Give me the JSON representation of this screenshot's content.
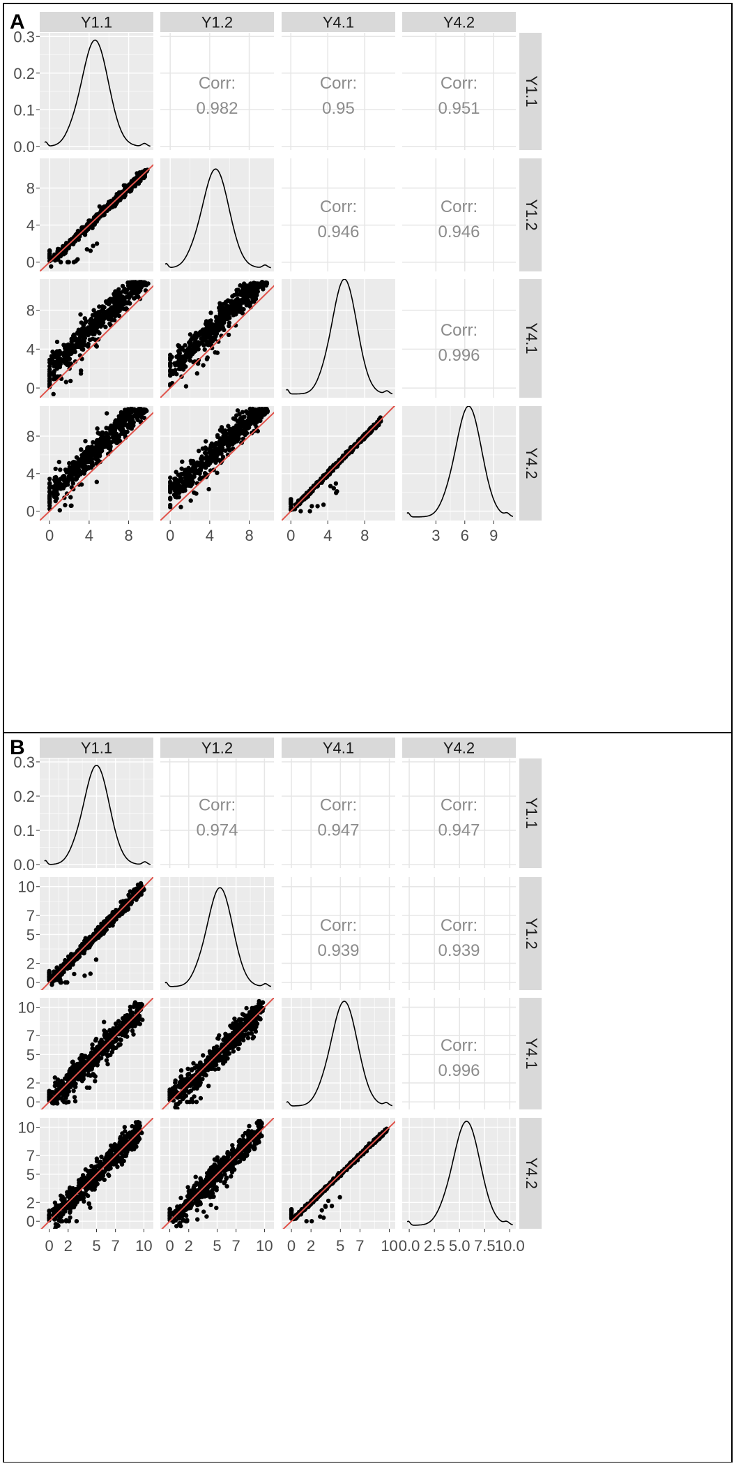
{
  "figure_labels": [
    "A",
    "B"
  ],
  "colors": {
    "panel_bg": "#ebebeb",
    "grid": "#ffffff",
    "strip": "#d9d9d9",
    "tick_text": "#4d4d4d",
    "corr_text": "#8c8c8c",
    "identity_line": "#e0524a",
    "points": "#000000",
    "border": "#000000"
  },
  "chart_data": [
    {
      "type": "scatter",
      "panel_label": "A",
      "title": "",
      "variables": [
        "Y1.1",
        "Y1.2",
        "Y4.1",
        "Y4.2"
      ],
      "diagonal": "density",
      "upper": "correlation",
      "lower": "scatter with identity line y = x",
      "corr_label": "Corr:",
      "correlations": [
        {
          "row": "Y1.1",
          "col": "Y1.2",
          "value": "0.982"
        },
        {
          "row": "Y1.1",
          "col": "Y4.1",
          "value": "0.95"
        },
        {
          "row": "Y1.1",
          "col": "Y4.2",
          "value": "0.951"
        },
        {
          "row": "Y1.2",
          "col": "Y4.1",
          "value": "0.946"
        },
        {
          "row": "Y1.2",
          "col": "Y4.2",
          "value": "0.946"
        },
        {
          "row": "Y4.1",
          "col": "Y4.2",
          "value": "0.996"
        }
      ],
      "x_axes": {
        "Y1.1": {
          "range": [
            -1,
            10.5
          ],
          "ticks": [
            0,
            4,
            8
          ],
          "tick_labels": [
            "0",
            "4",
            "8"
          ]
        },
        "Y1.2": {
          "range": [
            -1,
            10.5
          ],
          "ticks": [
            0,
            4,
            8
          ],
          "tick_labels": [
            "0",
            "4",
            "8"
          ]
        },
        "Y4.1": {
          "range": [
            -1,
            11.3
          ],
          "ticks": [
            0,
            4,
            8
          ],
          "tick_labels": [
            "0",
            "4",
            "8"
          ]
        },
        "Y4.2": {
          "range": [
            -0.5,
            11.3
          ],
          "ticks": [
            3,
            6,
            9
          ],
          "tick_labels": [
            "3",
            "6",
            "9"
          ]
        }
      },
      "y_axes": {
        "Y1.1": {
          "range": [
            -0.01,
            0.31
          ],
          "ticks": [
            0,
            0.1,
            0.2,
            0.3
          ],
          "tick_labels": [
            "0.0",
            "0.1",
            "0.2",
            "0.3"
          ]
        },
        "Y1.2": {
          "range": [
            -1,
            11.2
          ],
          "ticks": [
            0,
            4,
            8
          ],
          "tick_labels": [
            "0",
            "4",
            "8"
          ]
        },
        "Y4.1": {
          "range": [
            -1,
            11.2
          ],
          "ticks": [
            0,
            4,
            8
          ],
          "tick_labels": [
            "0",
            "4",
            "8"
          ]
        },
        "Y4.2": {
          "range": [
            -1,
            11.2
          ],
          "ticks": [
            0,
            4,
            8
          ],
          "tick_labels": [
            "0",
            "4",
            "8"
          ]
        }
      },
      "densities": [
        {
          "variable": "Y1.1",
          "peak_x": 4.6,
          "peak_density": 0.29
        },
        {
          "variable": "Y1.2",
          "peak_x": 4.6,
          "peak_density": 0.28
        },
        {
          "variable": "Y4.1",
          "peak_x": 5.8,
          "peak_density": 0.31
        },
        {
          "variable": "Y4.2",
          "peak_x": 6.4,
          "peak_density": 0.31
        }
      ],
      "scatter_trends": [
        {
          "x": "Y1.1",
          "y": "Y1.2",
          "slope": 1.0,
          "intercept": 0.0,
          "spread": 0.25
        },
        {
          "x": "Y1.1",
          "y": "Y4.1",
          "slope": 1.0,
          "intercept": 1.8,
          "spread": 0.75
        },
        {
          "x": "Y1.2",
          "y": "Y4.1",
          "slope": 1.0,
          "intercept": 1.8,
          "spread": 0.75
        },
        {
          "x": "Y1.1",
          "y": "Y4.2",
          "slope": 1.0,
          "intercept": 1.8,
          "spread": 0.75
        },
        {
          "x": "Y1.2",
          "y": "Y4.2",
          "slope": 1.0,
          "intercept": 1.8,
          "spread": 0.75
        },
        {
          "x": "Y4.1",
          "y": "Y4.2",
          "slope": 1.0,
          "intercept": 0.0,
          "spread": 0.12
        }
      ]
    },
    {
      "type": "scatter",
      "panel_label": "B",
      "title": "",
      "variables": [
        "Y1.1",
        "Y1.2",
        "Y4.1",
        "Y4.2"
      ],
      "diagonal": "density",
      "upper": "correlation",
      "lower": "scatter with identity line y = x",
      "corr_label": "Corr:",
      "correlations": [
        {
          "row": "Y1.1",
          "col": "Y1.2",
          "value": "0.974"
        },
        {
          "row": "Y1.1",
          "col": "Y4.1",
          "value": "0.947"
        },
        {
          "row": "Y1.1",
          "col": "Y4.2",
          "value": "0.947"
        },
        {
          "row": "Y1.2",
          "col": "Y4.1",
          "value": "0.939"
        },
        {
          "row": "Y1.2",
          "col": "Y4.2",
          "value": "0.939"
        },
        {
          "row": "Y4.1",
          "col": "Y4.2",
          "value": "0.996"
        }
      ],
      "x_axes": {
        "Y1.1": {
          "range": [
            -1,
            11
          ],
          "ticks": [
            0,
            2,
            5,
            7,
            10
          ],
          "tick_labels": [
            "0",
            "2",
            "5",
            "7",
            "10"
          ]
        },
        "Y1.2": {
          "range": [
            -1,
            11
          ],
          "ticks": [
            0,
            2,
            5,
            7,
            10
          ],
          "tick_labels": [
            "0",
            "2",
            "5",
            "7",
            "10"
          ]
        },
        "Y4.1": {
          "range": [
            -1,
            10.6
          ],
          "ticks": [
            0,
            2,
            5,
            7,
            10
          ],
          "tick_labels": [
            "0",
            "2",
            "5",
            "7",
            "10"
          ]
        },
        "Y4.2": {
          "range": [
            -0.7,
            10.6
          ],
          "ticks": [
            0,
            2.5,
            5,
            7.5,
            10
          ],
          "tick_labels": [
            "0.0",
            "2.5",
            "5.0",
            "7.5",
            "10.0"
          ]
        }
      },
      "y_axes": {
        "Y1.1": {
          "range": [
            -0.01,
            0.31
          ],
          "ticks": [
            0,
            0.1,
            0.2,
            0.3
          ],
          "tick_labels": [
            "0.0",
            "0.1",
            "0.2",
            "0.3"
          ]
        },
        "Y1.2": {
          "range": [
            -0.8,
            11
          ],
          "ticks": [
            0,
            2,
            5,
            7,
            10
          ],
          "tick_labels": [
            "0",
            "2",
            "5",
            "7",
            "10"
          ]
        },
        "Y4.1": {
          "range": [
            -0.8,
            11
          ],
          "ticks": [
            0,
            2,
            5,
            7,
            10
          ],
          "tick_labels": [
            "0",
            "2",
            "5",
            "7",
            "10"
          ]
        },
        "Y4.2": {
          "range": [
            -0.8,
            11
          ],
          "ticks": [
            0,
            2,
            5,
            7,
            10
          ],
          "tick_labels": [
            "0",
            "2",
            "5",
            "7",
            "10"
          ]
        }
      },
      "densities": [
        {
          "variable": "Y1.1",
          "peak_x": 5.0,
          "peak_density": 0.29
        },
        {
          "variable": "Y1.2",
          "peak_x": 5.3,
          "peak_density": 0.28
        },
        {
          "variable": "Y4.1",
          "peak_x": 5.4,
          "peak_density": 0.3
        },
        {
          "variable": "Y4.2",
          "peak_x": 5.7,
          "peak_density": 0.3
        }
      ],
      "scatter_trends": [
        {
          "x": "Y1.1",
          "y": "Y1.2",
          "slope": 1.0,
          "intercept": 0.0,
          "spread": 0.3
        },
        {
          "x": "Y1.1",
          "y": "Y4.1",
          "slope": 1.0,
          "intercept": 0.0,
          "spread": 0.7
        },
        {
          "x": "Y1.2",
          "y": "Y4.1",
          "slope": 1.0,
          "intercept": 0.0,
          "spread": 0.7
        },
        {
          "x": "Y1.1",
          "y": "Y4.2",
          "slope": 1.0,
          "intercept": 0.0,
          "spread": 0.7
        },
        {
          "x": "Y1.2",
          "y": "Y4.2",
          "slope": 1.0,
          "intercept": 0.0,
          "spread": 0.7
        },
        {
          "x": "Y4.1",
          "y": "Y4.2",
          "slope": 1.0,
          "intercept": 0.0,
          "spread": 0.1
        }
      ]
    }
  ]
}
